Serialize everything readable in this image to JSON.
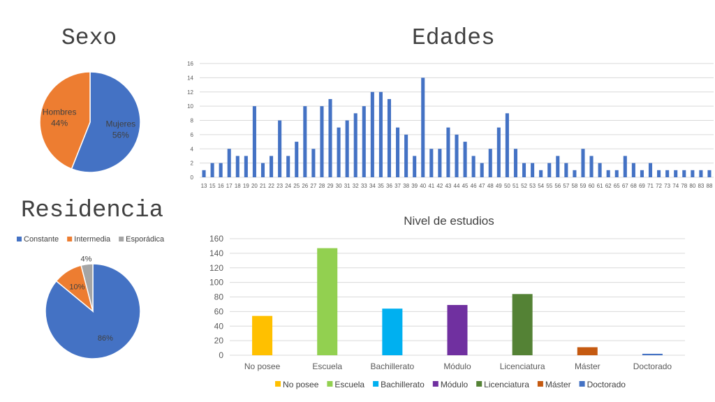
{
  "slide": {
    "sexo_heading": "Sexo",
    "edades_heading": "Edades",
    "residencia_heading": "Residencia"
  },
  "chart_data": [
    {
      "id": "sexo",
      "type": "pie",
      "title": "",
      "labels": [
        "Mujeres",
        "Hombres"
      ],
      "values": [
        56,
        44
      ],
      "value_labels": [
        "56%",
        "44%"
      ],
      "colors": [
        "#4472c4",
        "#ed7d31"
      ],
      "legend": "none"
    },
    {
      "id": "edades",
      "type": "bar",
      "title": "",
      "xlabel": "",
      "ylabel": "",
      "categories": [
        "13",
        "15",
        "16",
        "17",
        "18",
        "19",
        "20",
        "21",
        "22",
        "23",
        "24",
        "25",
        "26",
        "27",
        "28",
        "29",
        "30",
        "31",
        "32",
        "33",
        "34",
        "35",
        "36",
        "37",
        "38",
        "39",
        "40",
        "41",
        "42",
        "43",
        "44",
        "45",
        "46",
        "47",
        "48",
        "49",
        "50",
        "51",
        "52",
        "53",
        "54",
        "55",
        "56",
        "57",
        "58",
        "59",
        "60",
        "61",
        "62",
        "65",
        "67",
        "68",
        "69",
        "71",
        "72",
        "73",
        "74",
        "78",
        "80",
        "83",
        "88"
      ],
      "values": [
        1,
        2,
        2,
        4,
        3,
        3,
        10,
        2,
        3,
        8,
        3,
        5,
        10,
        4,
        10,
        11,
        7,
        8,
        9,
        10,
        12,
        12,
        11,
        7,
        6,
        3,
        14,
        4,
        4,
        7,
        6,
        5,
        3,
        2,
        4,
        7,
        9,
        4,
        2,
        2,
        1,
        2,
        3,
        2,
        1,
        4,
        3,
        2,
        1,
        1,
        3,
        2,
        1,
        2,
        1,
        1,
        1,
        1,
        1,
        1,
        1
      ],
      "ylim": [
        0,
        16
      ],
      "yticks": [
        0,
        2,
        4,
        6,
        8,
        10,
        12,
        14,
        16
      ],
      "color": "#4472c4",
      "grid": true,
      "legend": "none"
    },
    {
      "id": "residencia",
      "type": "pie",
      "title": "",
      "labels": [
        "Constante",
        "Intermedia",
        "Esporádica"
      ],
      "values": [
        86,
        10,
        4
      ],
      "value_labels": [
        "86%",
        "10%",
        "4%"
      ],
      "colors": [
        "#4472c4",
        "#ed7d31",
        "#a5a5a5"
      ],
      "legend": "top"
    },
    {
      "id": "nivel",
      "type": "bar",
      "title": "Nivel de estudios",
      "xlabel": "",
      "ylabel": "",
      "categories": [
        "No posee",
        "Escuela",
        "Bachillerato",
        "Módulo",
        "Licenciatura",
        "Máster",
        "Doctorado"
      ],
      "values": [
        54,
        147,
        64,
        69,
        84,
        11,
        2
      ],
      "colors": [
        "#ffc000",
        "#92d050",
        "#00b0f0",
        "#7030a0",
        "#548235",
        "#c55a11",
        "#4472c4"
      ],
      "ylim": [
        0,
        160
      ],
      "yticks": [
        0,
        20,
        40,
        60,
        80,
        100,
        120,
        140,
        160
      ],
      "grid": true,
      "legend": "bottom"
    }
  ]
}
